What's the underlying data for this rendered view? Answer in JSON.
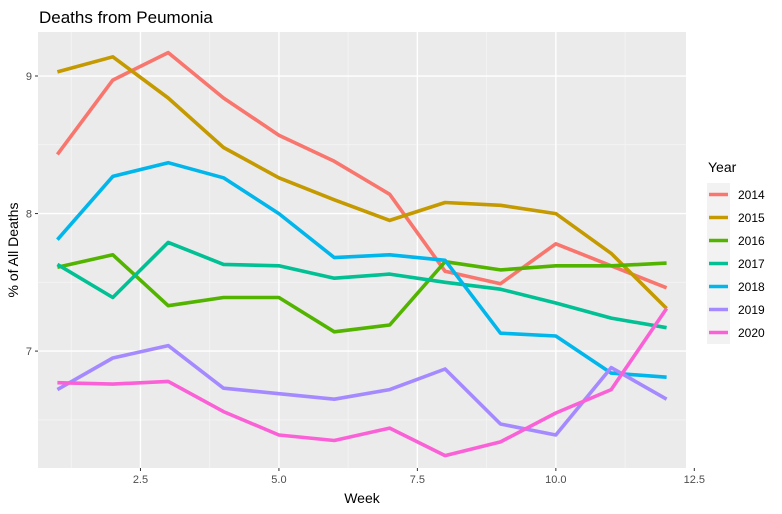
{
  "chart_data": {
    "type": "line",
    "title": "Deaths from Peumonia",
    "xlabel": "Week",
    "ylabel": "% of All Deaths",
    "xlim": [
      0.65,
      12.35
    ],
    "ylim": [
      6.15,
      9.32
    ],
    "x_ticks": [
      2.5,
      5.0,
      7.5,
      10.0,
      12.5
    ],
    "x_tick_labels": [
      "2.5",
      "5.0",
      "7.5",
      "10.0",
      "12.5"
    ],
    "y_ticks": [
      7,
      8,
      9
    ],
    "y_tick_labels": [
      "7",
      "8",
      "9"
    ],
    "grid": true,
    "legend_title": "Year",
    "legend_position": "right",
    "x": [
      1,
      2,
      3,
      4,
      5,
      6,
      7,
      8,
      9,
      10,
      11,
      12
    ],
    "series": [
      {
        "name": "2014",
        "color": "#F8766D",
        "values": [
          8.43,
          8.97,
          9.17,
          8.84,
          8.57,
          8.38,
          8.14,
          7.58,
          7.49,
          7.78,
          7.62,
          7.46
        ]
      },
      {
        "name": "2015",
        "color": "#C49A00",
        "values": [
          9.03,
          9.14,
          8.84,
          8.48,
          8.26,
          8.1,
          7.95,
          8.08,
          8.06,
          8.0,
          7.71,
          7.31
        ]
      },
      {
        "name": "2016",
        "color": "#53B400",
        "values": [
          7.61,
          7.7,
          7.33,
          7.39,
          7.39,
          7.14,
          7.19,
          7.65,
          7.59,
          7.62,
          7.62,
          7.64
        ]
      },
      {
        "name": "2017",
        "color": "#00C094",
        "values": [
          7.63,
          7.39,
          7.79,
          7.63,
          7.62,
          7.53,
          7.56,
          7.5,
          7.45,
          7.35,
          7.24,
          7.17
        ]
      },
      {
        "name": "2018",
        "color": "#00B6EB",
        "values": [
          7.81,
          8.27,
          8.37,
          8.26,
          8.0,
          7.68,
          7.7,
          7.66,
          7.13,
          7.11,
          6.84,
          6.81
        ]
      },
      {
        "name": "2019",
        "color": "#A58AFF",
        "values": [
          6.72,
          6.95,
          7.04,
          6.73,
          6.69,
          6.65,
          6.72,
          6.87,
          6.47,
          6.39,
          6.88,
          6.65
        ]
      },
      {
        "name": "2020",
        "color": "#FB61D7",
        "values": [
          6.77,
          6.76,
          6.78,
          6.56,
          6.39,
          6.35,
          6.44,
          6.24,
          6.34,
          6.55,
          6.72,
          7.31
        ]
      }
    ]
  }
}
